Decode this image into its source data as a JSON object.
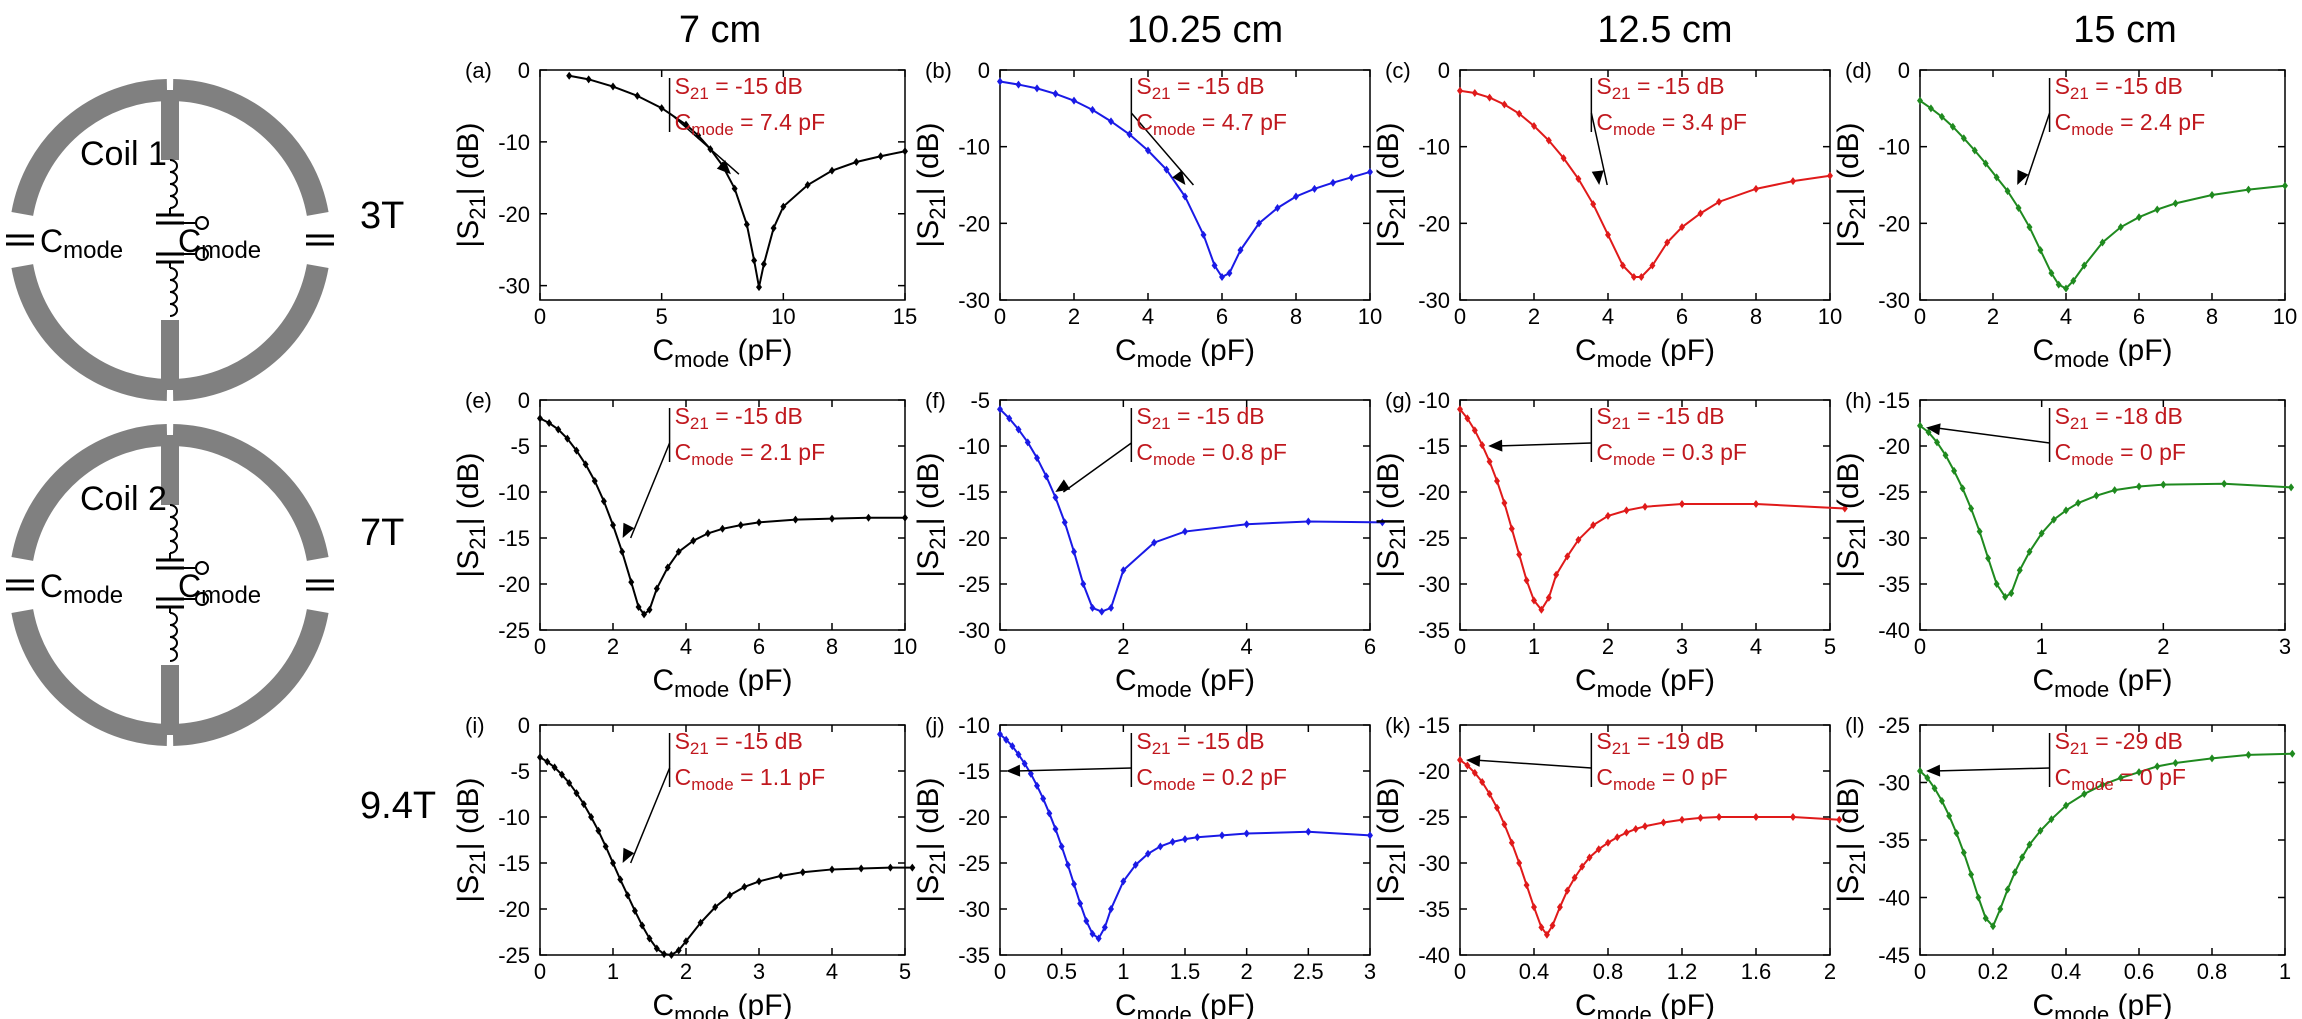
{
  "figure": {
    "columns": [
      "7 cm",
      "10.25 cm",
      "12.5 cm",
      "15 cm"
    ],
    "rows": [
      "3T",
      "7T",
      "9.4T"
    ],
    "coil_labels": [
      "Coil 1",
      "Coil 2"
    ],
    "cmode_label_main": "C",
    "cmode_label_sub": "mode"
  },
  "colors": {
    "black": "#000000",
    "blue": "#1a1ae6",
    "red": "#e01a1a",
    "green": "#1f8a1f",
    "annotation": "#c0181e",
    "coil": "#808080"
  },
  "chart_data": [
    {
      "panel": "(a)",
      "type": "line",
      "color": "black",
      "xlabel": "Cmode (pF)",
      "ylabel": "|S21| (dB)",
      "xlim": [
        0,
        15
      ],
      "xticks": [
        0,
        5,
        10,
        15
      ],
      "ylim": [
        -32,
        0
      ],
      "yticks": [
        0,
        -10,
        -20,
        -30
      ],
      "x": [
        1.2,
        2,
        3,
        4,
        5,
        6,
        6.5,
        7,
        7.5,
        8,
        8.5,
        8.8,
        9,
        9.2,
        9.6,
        10,
        11,
        12,
        13,
        14,
        15
      ],
      "y": [
        -0.8,
        -1.3,
        -2.3,
        -3.6,
        -5.3,
        -7.6,
        -9.1,
        -11,
        -13.3,
        -16.5,
        -21.5,
        -26.5,
        -30.2,
        -27,
        -22,
        -19,
        -16,
        -14,
        -12.8,
        -12,
        -11.3
      ],
      "annotation": {
        "s21": "-15 dB",
        "cmode": "7.4 pF",
        "px": 7.6,
        "py": -14.5
      }
    },
    {
      "panel": "(b)",
      "type": "line",
      "color": "blue",
      "xlabel": "Cmode (pF)",
      "ylabel": "|S21| (dB)",
      "xlim": [
        0,
        10
      ],
      "xticks": [
        0,
        2,
        4,
        6,
        8,
        10
      ],
      "ylim": [
        -30,
        0
      ],
      "yticks": [
        0,
        -10,
        -20,
        -30
      ],
      "x": [
        0,
        0.5,
        1,
        1.5,
        2,
        2.5,
        3,
        3.5,
        4,
        4.5,
        5,
        5.5,
        5.8,
        6,
        6.2,
        6.5,
        7,
        7.5,
        8,
        8.5,
        9,
        9.5,
        10
      ],
      "y": [
        -1.5,
        -1.9,
        -2.4,
        -3.1,
        -4,
        -5.2,
        -6.7,
        -8.4,
        -10.5,
        -13,
        -16.5,
        -21.5,
        -25.5,
        -27,
        -26.5,
        -23.5,
        -20,
        -18,
        -16.5,
        -15.5,
        -14.7,
        -14,
        -13.3
      ],
      "annotation": {
        "s21": "-15 dB",
        "cmode": "4.7 pF",
        "px": 4.85,
        "py": -15
      }
    },
    {
      "panel": "(c)",
      "type": "line",
      "color": "red",
      "xlabel": "Cmode (pF)",
      "ylabel": "|S21| (dB)",
      "xlim": [
        0,
        10
      ],
      "xticks": [
        0,
        2,
        4,
        6,
        8,
        10
      ],
      "ylim": [
        -30,
        0
      ],
      "yticks": [
        0,
        -10,
        -20,
        -30
      ],
      "x": [
        0,
        0.4,
        0.8,
        1.2,
        1.6,
        2,
        2.4,
        2.8,
        3.2,
        3.6,
        4,
        4.4,
        4.7,
        4.9,
        5.2,
        5.6,
        6,
        6.5,
        7,
        8,
        9,
        10
      ],
      "y": [
        -2.7,
        -3,
        -3.6,
        -4.5,
        -5.7,
        -7.3,
        -9.2,
        -11.5,
        -14.2,
        -17.5,
        -21.5,
        -25.5,
        -27,
        -27,
        -25.5,
        -22.5,
        -20.5,
        -18.7,
        -17.2,
        -15.5,
        -14.5,
        -13.8
      ],
      "annotation": {
        "s21": "-15 dB",
        "cmode": "3.4 pF",
        "px": 3.6,
        "py": -15
      }
    },
    {
      "panel": "(d)",
      "type": "line",
      "color": "green",
      "xlabel": "Cmode (pF)",
      "ylabel": "|S21| (dB)",
      "xlim": [
        0,
        10
      ],
      "xticks": [
        0,
        2,
        4,
        6,
        8,
        10
      ],
      "ylim": [
        -30,
        0
      ],
      "yticks": [
        0,
        -10,
        -20,
        -30
      ],
      "x": [
        0,
        0.3,
        0.6,
        0.9,
        1.2,
        1.5,
        1.8,
        2.1,
        2.4,
        2.7,
        3,
        3.3,
        3.6,
        3.8,
        4,
        4.2,
        4.5,
        5,
        5.5,
        6,
        6.5,
        7,
        8,
        9,
        10
      ],
      "y": [
        -4,
        -5,
        -6.1,
        -7.4,
        -8.9,
        -10.5,
        -12.2,
        -14,
        -15.8,
        -18,
        -20.5,
        -23.5,
        -26.5,
        -28,
        -28.5,
        -27.5,
        -25.5,
        -22.5,
        -20.5,
        -19.2,
        -18.2,
        -17.4,
        -16.3,
        -15.6,
        -15.1
      ],
      "annotation": {
        "s21": "-15 dB",
        "cmode": "2.4 pF",
        "px": 2.5,
        "py": -15
      }
    },
    {
      "panel": "(e)",
      "type": "line",
      "color": "black",
      "xlabel": "Cmode (pF)",
      "ylabel": "|S21| (dB)",
      "xlim": [
        0,
        10
      ],
      "xticks": [
        0,
        2,
        4,
        6,
        8,
        10
      ],
      "ylim": [
        -25,
        0
      ],
      "yticks": [
        0,
        -5,
        -10,
        -15,
        -20,
        -25
      ],
      "x": [
        0,
        0.25,
        0.5,
        0.75,
        1,
        1.25,
        1.5,
        1.75,
        2,
        2.25,
        2.5,
        2.7,
        2.85,
        3,
        3.2,
        3.5,
        3.8,
        4.2,
        4.6,
        5,
        5.5,
        6,
        7,
        8,
        9,
        10
      ],
      "y": [
        -2,
        -2.5,
        -3.2,
        -4.2,
        -5.5,
        -7,
        -8.8,
        -11,
        -13.6,
        -16.5,
        -19.8,
        -22.5,
        -23.3,
        -22.8,
        -20.5,
        -18.2,
        -16.5,
        -15.3,
        -14.5,
        -14,
        -13.6,
        -13.3,
        -13,
        -12.9,
        -12.8,
        -12.8
      ],
      "annotation": {
        "s21": "-15 dB",
        "cmode": "2.1 pF",
        "px": 2.1,
        "py": -15
      }
    },
    {
      "panel": "(f)",
      "type": "line",
      "color": "blue",
      "xlabel": "Cmode (pF)",
      "ylabel": "|S21| (dB)",
      "xlim": [
        0,
        6
      ],
      "xticks": [
        0,
        2,
        4,
        6
      ],
      "ylim": [
        -30,
        -5
      ],
      "yticks": [
        -5,
        -10,
        -15,
        -20,
        -25,
        -30
      ],
      "x": [
        0,
        0.15,
        0.3,
        0.45,
        0.6,
        0.75,
        0.9,
        1.05,
        1.2,
        1.35,
        1.5,
        1.65,
        1.8,
        2,
        2.5,
        3,
        4,
        5,
        6.2
      ],
      "y": [
        -6,
        -7,
        -8.2,
        -9.6,
        -11.3,
        -13.3,
        -15.6,
        -18.3,
        -21.5,
        -25,
        -27.6,
        -28,
        -27.6,
        -23.5,
        -20.5,
        -19.3,
        -18.5,
        -18.2,
        -18.3
      ],
      "annotation": {
        "s21": "-15 dB",
        "cmode": "0.8 pF",
        "px": 0.8,
        "py": -15
      }
    },
    {
      "panel": "(g)",
      "type": "line",
      "color": "red",
      "xlabel": "Cmode (pF)",
      "ylabel": "|S21| (dB)",
      "xlim": [
        0,
        5
      ],
      "xticks": [
        0,
        1,
        2,
        3,
        4,
        5
      ],
      "ylim": [
        -35,
        -10
      ],
      "yticks": [
        -10,
        -15,
        -20,
        -25,
        -30,
        -35
      ],
      "x": [
        0,
        0.1,
        0.2,
        0.3,
        0.4,
        0.5,
        0.6,
        0.7,
        0.8,
        0.9,
        1,
        1.1,
        1.2,
        1.3,
        1.45,
        1.6,
        1.8,
        2,
        2.25,
        2.5,
        3,
        4,
        5.2
      ],
      "y": [
        -11,
        -12,
        -13.3,
        -14.9,
        -16.7,
        -18.8,
        -21.2,
        -24,
        -26.8,
        -29.6,
        -31.8,
        -32.8,
        -31.5,
        -29,
        -27,
        -25.2,
        -23.6,
        -22.6,
        -22,
        -21.6,
        -21.3,
        -21.3,
        -21.8
      ],
      "annotation": {
        "s21": "-15 dB",
        "cmode": "0.3 pF",
        "px": 0.3,
        "py": -15
      }
    },
    {
      "panel": "(h)",
      "type": "line",
      "color": "green",
      "xlabel": "Cmode (pF)",
      "ylabel": "|S21| (dB)",
      "xlim": [
        0,
        3
      ],
      "xticks": [
        0,
        1,
        2,
        3
      ],
      "ylim": [
        -40,
        -15
      ],
      "yticks": [
        -15,
        -20,
        -25,
        -30,
        -35,
        -40
      ],
      "x": [
        0,
        0.07,
        0.14,
        0.21,
        0.28,
        0.35,
        0.42,
        0.49,
        0.56,
        0.63,
        0.7,
        0.75,
        0.82,
        0.9,
        1,
        1.1,
        1.2,
        1.3,
        1.45,
        1.6,
        1.8,
        2,
        2.5,
        3.05
      ],
      "y": [
        -17.8,
        -18.5,
        -19.6,
        -21,
        -22.7,
        -24.6,
        -26.8,
        -29.3,
        -32.2,
        -35,
        -36.4,
        -36,
        -33.5,
        -31.5,
        -29.5,
        -28,
        -27,
        -26.2,
        -25.4,
        -24.8,
        -24.4,
        -24.2,
        -24.1,
        -24.5
      ],
      "annotation": {
        "s21": "-18 dB",
        "cmode": "0 pF",
        "px": 0,
        "py": -18
      }
    },
    {
      "panel": "(i)",
      "type": "line",
      "color": "black",
      "xlabel": "Cmode (pF)",
      "ylabel": "|S21| (dB)",
      "xlim": [
        0,
        5
      ],
      "xticks": [
        0,
        1,
        2,
        3,
        4,
        5
      ],
      "ylim": [
        -25,
        0
      ],
      "yticks": [
        0,
        -5,
        -10,
        -15,
        -20,
        -25
      ],
      "x": [
        0,
        0.1,
        0.2,
        0.3,
        0.4,
        0.5,
        0.6,
        0.7,
        0.8,
        0.9,
        1,
        1.1,
        1.2,
        1.3,
        1.4,
        1.5,
        1.6,
        1.7,
        1.8,
        1.9,
        2,
        2.2,
        2.4,
        2.6,
        2.8,
        3,
        3.3,
        3.6,
        4,
        4.4,
        4.8,
        5.1
      ],
      "y": [
        -3.5,
        -4,
        -4.6,
        -5.4,
        -6.3,
        -7.4,
        -8.6,
        -10,
        -11.5,
        -13.2,
        -15,
        -16.8,
        -18.5,
        -20.2,
        -21.8,
        -23.2,
        -24.3,
        -24.9,
        -25,
        -24.5,
        -23.5,
        -21.5,
        -19.8,
        -18.5,
        -17.6,
        -17,
        -16.4,
        -16,
        -15.7,
        -15.6,
        -15.5,
        -15.5
      ],
      "annotation": {
        "s21": "-15 dB",
        "cmode": "1.1 pF",
        "px": 1.05,
        "py": -15
      }
    },
    {
      "panel": "(j)",
      "type": "line",
      "color": "blue",
      "xlabel": "Cmode (pF)",
      "ylabel": "|S21| (dB)",
      "xlim": [
        0,
        3
      ],
      "xticks": [
        0,
        0.5,
        1,
        1.5,
        2,
        2.5,
        3
      ],
      "ylim": [
        -35,
        -10
      ],
      "yticks": [
        -10,
        -15,
        -20,
        -25,
        -30,
        -35
      ],
      "x": [
        0,
        0.05,
        0.1,
        0.15,
        0.2,
        0.25,
        0.3,
        0.35,
        0.4,
        0.45,
        0.5,
        0.55,
        0.6,
        0.65,
        0.7,
        0.75,
        0.8,
        0.85,
        0.9,
        1,
        1.1,
        1.2,
        1.3,
        1.4,
        1.5,
        1.6,
        1.8,
        2,
        2.5,
        3
      ],
      "y": [
        -11,
        -11.6,
        -12.3,
        -13.2,
        -14.2,
        -15.3,
        -16.6,
        -18,
        -19.6,
        -21.3,
        -23.2,
        -25.2,
        -27.3,
        -29.4,
        -31.3,
        -32.7,
        -33.2,
        -32,
        -30,
        -27,
        -25.2,
        -24,
        -23.2,
        -22.7,
        -22.4,
        -22.2,
        -22,
        -21.8,
        -21.6,
        -22
      ],
      "annotation": {
        "s21": "-15 dB",
        "cmode": "0.2 pF",
        "px": 0,
        "py": -15
      }
    },
    {
      "panel": "(k)",
      "type": "line",
      "color": "red",
      "xlabel": "Cmode (pF)",
      "ylabel": "|S21| (dB)",
      "xlim": [
        0,
        2
      ],
      "xticks": [
        0,
        0.4,
        0.8,
        1.2,
        1.6,
        2
      ],
      "ylim": [
        -40,
        -15
      ],
      "yticks": [
        -15,
        -20,
        -25,
        -30,
        -35,
        -40
      ],
      "x": [
        0,
        0.04,
        0.08,
        0.12,
        0.16,
        0.2,
        0.24,
        0.28,
        0.32,
        0.36,
        0.4,
        0.44,
        0.47,
        0.5,
        0.54,
        0.58,
        0.62,
        0.66,
        0.7,
        0.75,
        0.8,
        0.85,
        0.9,
        0.95,
        1,
        1.1,
        1.2,
        1.3,
        1.4,
        1.6,
        1.8,
        2.05
      ],
      "y": [
        -18.8,
        -19.4,
        -20.2,
        -21.2,
        -22.5,
        -24,
        -25.8,
        -27.8,
        -30,
        -32.4,
        -34.8,
        -37,
        -37.8,
        -36.8,
        -34.8,
        -33,
        -31.6,
        -30.4,
        -29.4,
        -28.5,
        -27.8,
        -27.2,
        -26.7,
        -26.3,
        -26,
        -25.6,
        -25.3,
        -25.1,
        -25,
        -25,
        -25,
        -25.3
      ],
      "annotation": {
        "s21": "-19 dB",
        "cmode": "0 pF",
        "px": 0,
        "py": -18.8
      }
    },
    {
      "panel": "(l)",
      "type": "line",
      "color": "green",
      "xlabel": "Cmode (pF)",
      "ylabel": "|S21| (dB)",
      "xlim": [
        0,
        1
      ],
      "xticks": [
        0,
        0.2,
        0.4,
        0.6,
        0.8,
        1
      ],
      "ylim": [
        -45,
        -25
      ],
      "yticks": [
        -25,
        -30,
        -35,
        -40,
        -45
      ],
      "x": [
        0,
        0.02,
        0.04,
        0.06,
        0.08,
        0.1,
        0.12,
        0.14,
        0.16,
        0.18,
        0.2,
        0.22,
        0.24,
        0.26,
        0.28,
        0.3,
        0.33,
        0.36,
        0.4,
        0.45,
        0.5,
        0.55,
        0.6,
        0.65,
        0.7,
        0.8,
        0.9,
        1.02
      ],
      "y": [
        -29,
        -29.6,
        -30.5,
        -31.6,
        -32.9,
        -34.4,
        -36.1,
        -38,
        -40,
        -41.8,
        -42.5,
        -41,
        -39.3,
        -37.8,
        -36.5,
        -35.4,
        -34.2,
        -33.2,
        -32,
        -31,
        -30.2,
        -29.6,
        -29.1,
        -28.6,
        -28.3,
        -27.9,
        -27.6,
        -27.5
      ],
      "annotation": {
        "s21": "-29 dB",
        "cmode": "0 pF",
        "px": 0,
        "py": -29
      }
    }
  ]
}
